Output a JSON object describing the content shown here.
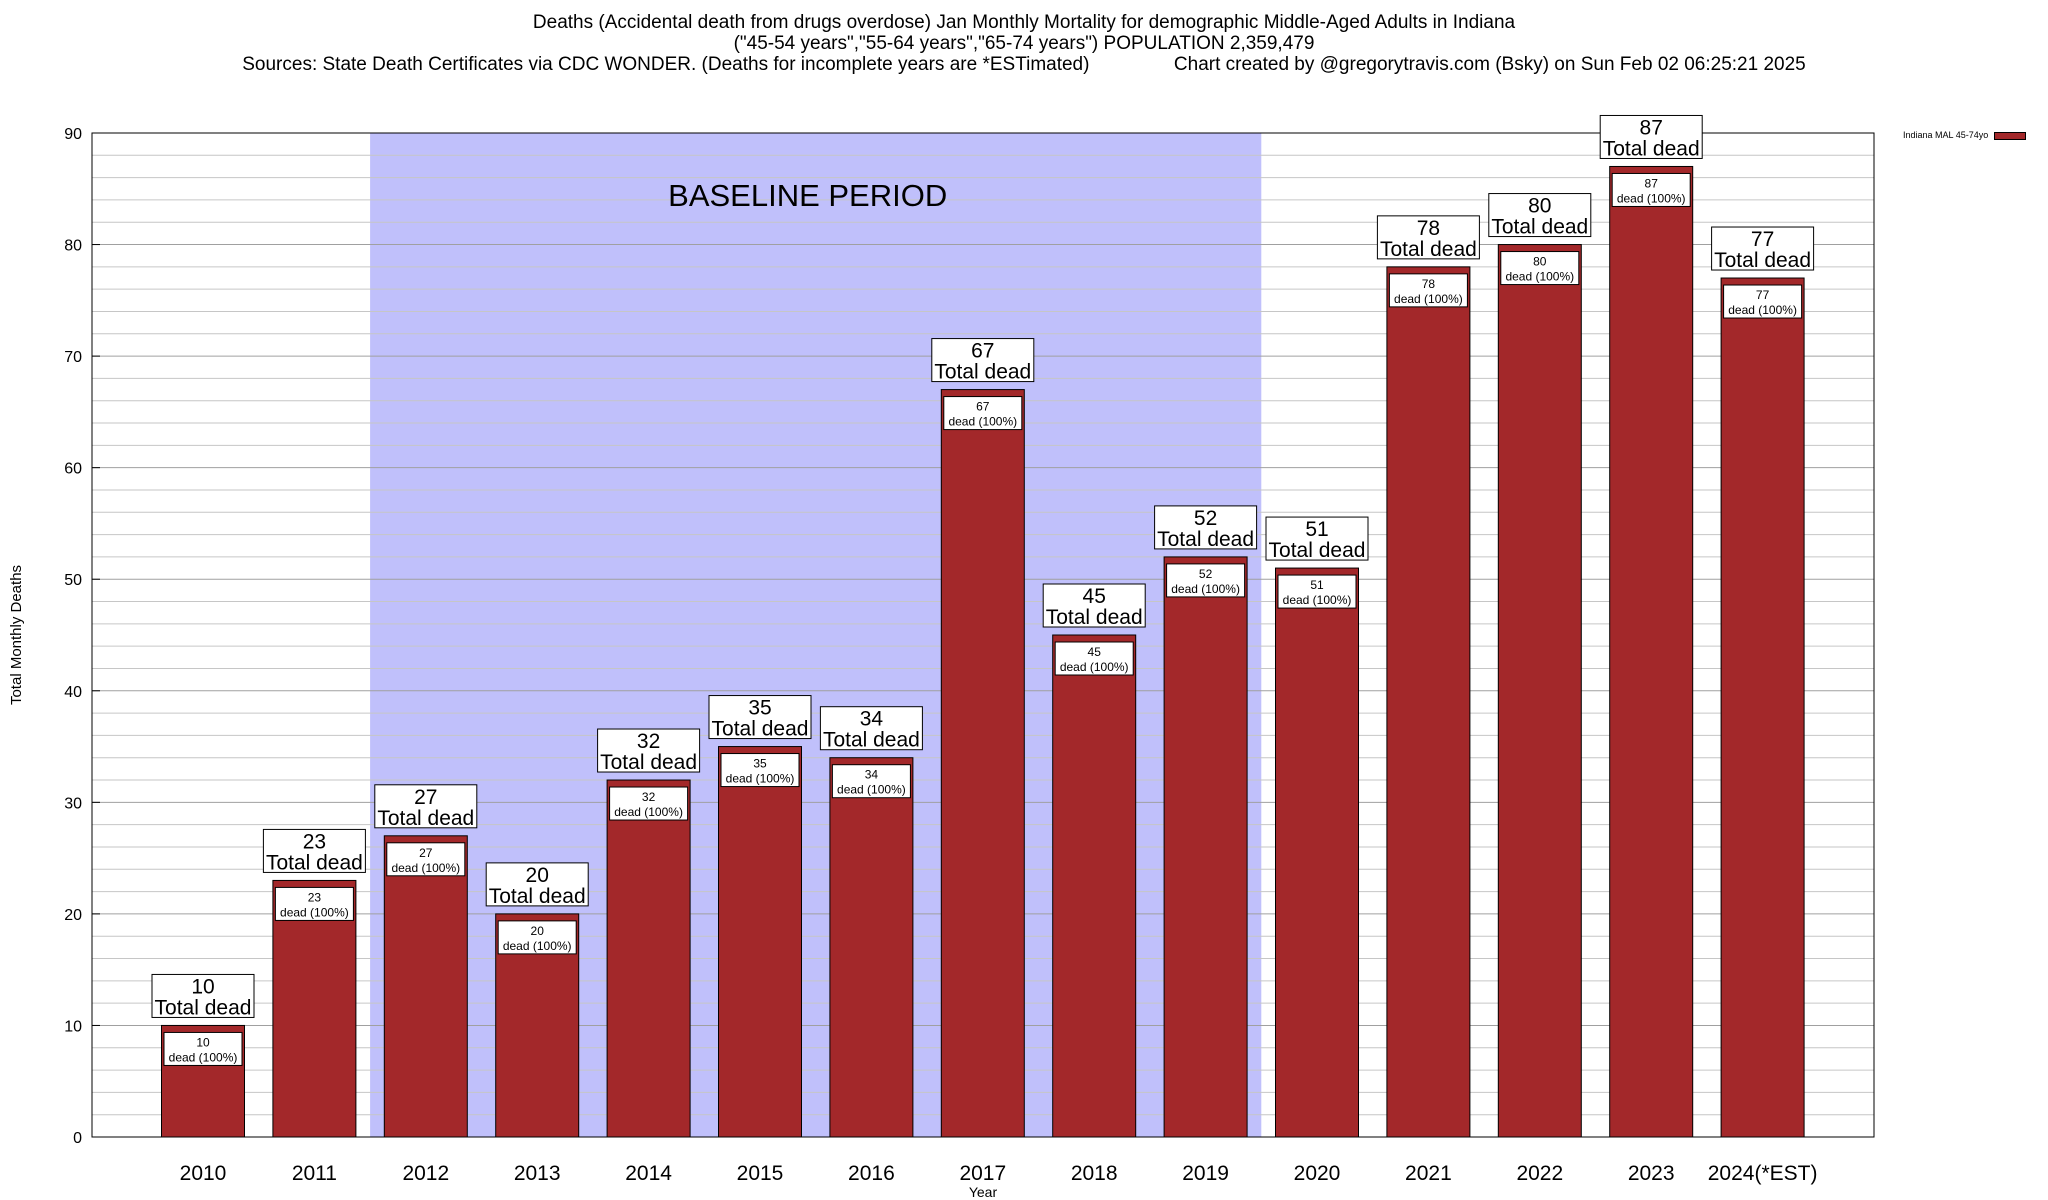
{
  "title": {
    "line1": "Deaths (Accidental death from drugs overdose) Jan Monthly Mortality for demographic Middle-Aged Adults in Indiana",
    "line2": "(\"45-54 years\",\"55-64 years\",\"65-74 years\") POPULATION 2,359,479",
    "line3": "Sources: State Death Certificates via CDC WONDER. (Deaths for incomplete years are *ESTimated)                Chart created by @gregorytravis.com (Bsky) on Sun Feb 02 06:25:21 2025"
  },
  "legend": {
    "label": "Indiana MAL 45-74yo",
    "color": "#a3282a"
  },
  "colors": {
    "bar": "#a3282a",
    "baseline_shade": "#c0c0fb"
  },
  "chart_data": {
    "type": "bar",
    "xlabel": "Year",
    "ylabel": "Total Monthly Deaths",
    "ylim": [
      0,
      90
    ],
    "yticks": [
      0,
      10,
      20,
      30,
      40,
      50,
      60,
      70,
      80,
      90
    ],
    "grid": true,
    "legend_position": "top-right",
    "categories": [
      "2010",
      "2011",
      "2012",
      "2013",
      "2014",
      "2015",
      "2016",
      "2017",
      "2018",
      "2019",
      "2020",
      "2021",
      "2022",
      "2023",
      "2024(*EST)"
    ],
    "series": [
      {
        "name": "Indiana MAL 45-74yo",
        "values": [
          10,
          23,
          27,
          20,
          32,
          35,
          34,
          67,
          45,
          52,
          51,
          78,
          80,
          87,
          77
        ]
      }
    ],
    "bar_label_suffix": "Total dead",
    "inner_label_suffix": "dead (100%)",
    "annotation": {
      "text": "BASELINE PERIOD",
      "start_category": "2012",
      "end_category": "2019"
    }
  }
}
